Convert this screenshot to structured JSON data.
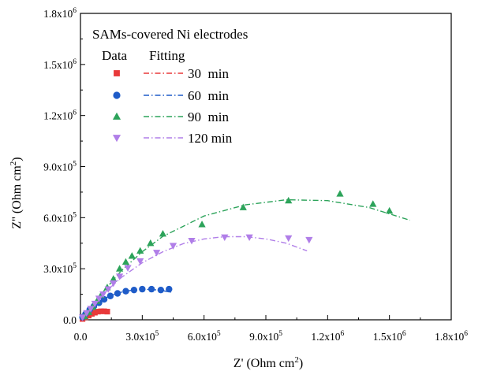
{
  "chart_data": {
    "type": "scatter",
    "title": "",
    "xlabel": "Z' (Ohm cm²)",
    "ylabel": "Z'' (Ohm cm²)",
    "xlim": [
      0,
      1800000
    ],
    "ylim": [
      0,
      1800000
    ],
    "x_ticks": [
      0,
      300000,
      600000,
      900000,
      1200000,
      1500000,
      1800000
    ],
    "x_tick_labels": [
      {
        "base": "0.0",
        "exp": ""
      },
      {
        "base": "3.0x10",
        "exp": "5"
      },
      {
        "base": "6.0x10",
        "exp": "5"
      },
      {
        "base": "9.0x10",
        "exp": "5"
      },
      {
        "base": "1.2x10",
        "exp": "6"
      },
      {
        "base": "1.5x10",
        "exp": "6"
      },
      {
        "base": "1.8x10",
        "exp": "6"
      }
    ],
    "y_ticks": [
      0,
      300000,
      600000,
      900000,
      1200000,
      1500000,
      1800000
    ],
    "y_tick_labels": [
      {
        "base": "0.0",
        "exp": ""
      },
      {
        "base": "3.0x10",
        "exp": "5"
      },
      {
        "base": "6.0x10",
        "exp": "5"
      },
      {
        "base": "9.0x10",
        "exp": "5"
      },
      {
        "base": "1.2x10",
        "exp": "6"
      },
      {
        "base": "1.5x10",
        "exp": "6"
      },
      {
        "base": "1.8x10",
        "exp": "6"
      }
    ],
    "legend": {
      "title": "SAMs-covered Ni electrodes",
      "data_header": "Data",
      "fitting_header": "Fitting",
      "placement": "top-left"
    },
    "grid": false,
    "series": [
      {
        "name": "30  min",
        "color": "#e8393a",
        "marker": "square",
        "points": [
          [
            10000,
            5000
          ],
          [
            25000,
            15000
          ],
          [
            40000,
            25000
          ],
          [
            55000,
            35000
          ],
          [
            70000,
            42000
          ],
          [
            85000,
            48000
          ],
          [
            100000,
            50000
          ],
          [
            115000,
            50000
          ],
          [
            130000,
            48000
          ]
        ],
        "fit": [
          [
            0,
            0
          ],
          [
            30000,
            20000
          ],
          [
            60000,
            38000
          ],
          [
            90000,
            48000
          ],
          [
            120000,
            52000
          ],
          [
            140000,
            50000
          ]
        ]
      },
      {
        "name": "60  min",
        "color": "#1f5cc8",
        "marker": "circle",
        "points": [
          [
            10000,
            15000
          ],
          [
            25000,
            35000
          ],
          [
            45000,
            60000
          ],
          [
            65000,
            80000
          ],
          [
            90000,
            100000
          ],
          [
            115000,
            120000
          ],
          [
            145000,
            140000
          ],
          [
            180000,
            155000
          ],
          [
            220000,
            168000
          ],
          [
            260000,
            175000
          ],
          [
            300000,
            180000
          ],
          [
            345000,
            180000
          ],
          [
            390000,
            175000
          ],
          [
            430000,
            180000
          ]
        ],
        "fit": [
          [
            0,
            0
          ],
          [
            50000,
            70000
          ],
          [
            100000,
            115000
          ],
          [
            150000,
            145000
          ],
          [
            200000,
            163000
          ],
          [
            250000,
            174000
          ],
          [
            300000,
            179000
          ],
          [
            350000,
            178000
          ],
          [
            400000,
            171000
          ],
          [
            440000,
            162000
          ]
        ]
      },
      {
        "name": "90  min",
        "color": "#2ca35a",
        "marker": "triangle-up",
        "points": [
          [
            20000,
            20000
          ],
          [
            40000,
            45000
          ],
          [
            60000,
            75000
          ],
          [
            80000,
            110000
          ],
          [
            100000,
            145000
          ],
          [
            130000,
            190000
          ],
          [
            160000,
            240000
          ],
          [
            190000,
            300000
          ],
          [
            220000,
            340000
          ],
          [
            250000,
            375000
          ],
          [
            290000,
            405000
          ],
          [
            340000,
            450000
          ],
          [
            400000,
            505000
          ],
          [
            590000,
            560000
          ],
          [
            790000,
            660000
          ],
          [
            1010000,
            700000
          ],
          [
            1260000,
            740000
          ],
          [
            1420000,
            680000
          ],
          [
            1500000,
            640000
          ]
        ],
        "fit": [
          [
            0,
            0
          ],
          [
            100000,
            150000
          ],
          [
            200000,
            290000
          ],
          [
            300000,
            400000
          ],
          [
            400000,
            490000
          ],
          [
            600000,
            610000
          ],
          [
            800000,
            675000
          ],
          [
            1000000,
            705000
          ],
          [
            1200000,
            700000
          ],
          [
            1400000,
            660000
          ],
          [
            1600000,
            585000
          ]
        ]
      },
      {
        "name": "120 min",
        "color": "#b07ee8",
        "marker": "triangle-down",
        "points": [
          [
            10000,
            15000
          ],
          [
            30000,
            40000
          ],
          [
            50000,
            65000
          ],
          [
            70000,
            95000
          ],
          [
            90000,
            125000
          ],
          [
            110000,
            150000
          ],
          [
            135000,
            180000
          ],
          [
            160000,
            215000
          ],
          [
            190000,
            255000
          ],
          [
            230000,
            305000
          ],
          [
            290000,
            345000
          ],
          [
            370000,
            395000
          ],
          [
            450000,
            435000
          ],
          [
            540000,
            465000
          ],
          [
            700000,
            485000
          ],
          [
            820000,
            485000
          ],
          [
            1010000,
            480000
          ],
          [
            1110000,
            470000
          ]
        ],
        "fit": [
          [
            0,
            0
          ],
          [
            100000,
            140000
          ],
          [
            200000,
            250000
          ],
          [
            300000,
            335000
          ],
          [
            400000,
            400000
          ],
          [
            500000,
            448000
          ],
          [
            600000,
            475000
          ],
          [
            700000,
            488000
          ],
          [
            800000,
            488000
          ],
          [
            900000,
            475000
          ],
          [
            1000000,
            450000
          ],
          [
            1100000,
            405000
          ]
        ]
      }
    ]
  }
}
